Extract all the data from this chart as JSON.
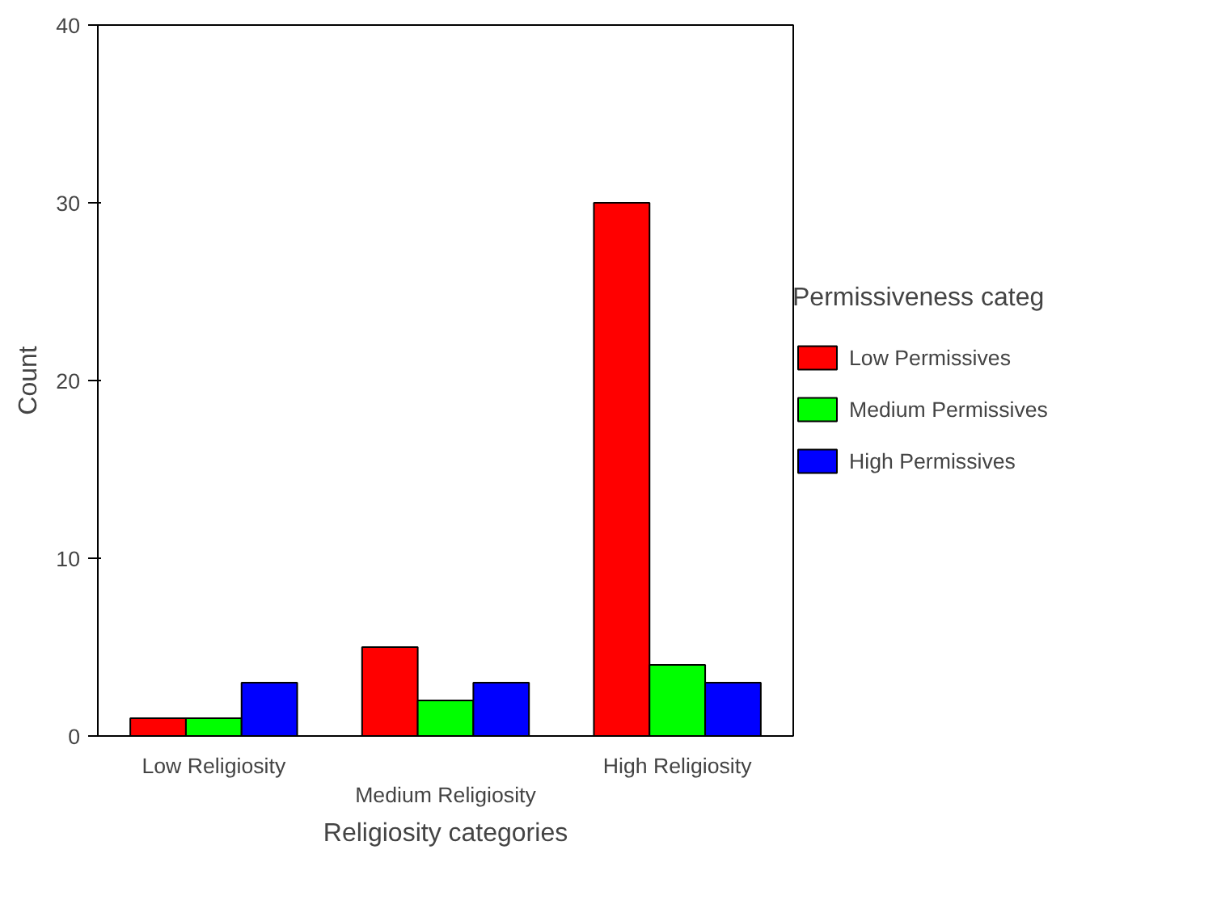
{
  "chart_data": {
    "type": "bar",
    "categories": [
      "Low Religiosity",
      "Medium Religiosity",
      "High Religiosity"
    ],
    "series": [
      {
        "name": "Low Permissives",
        "color": "#ff0000",
        "values": [
          1,
          5,
          30
        ]
      },
      {
        "name": "Medium Permissives",
        "color": "#00ff00",
        "values": [
          1,
          2,
          4
        ]
      },
      {
        "name": "High Permissives",
        "color": "#0000ff",
        "values": [
          3,
          3,
          3
        ]
      }
    ],
    "xlabel": "Religiosity categories",
    "ylabel": "Count",
    "legend_title": "Permissiveness categ",
    "ylim": [
      0,
      40
    ],
    "yticks": [
      0,
      10,
      20,
      30,
      40
    ],
    "grid": false,
    "legend": "right"
  }
}
